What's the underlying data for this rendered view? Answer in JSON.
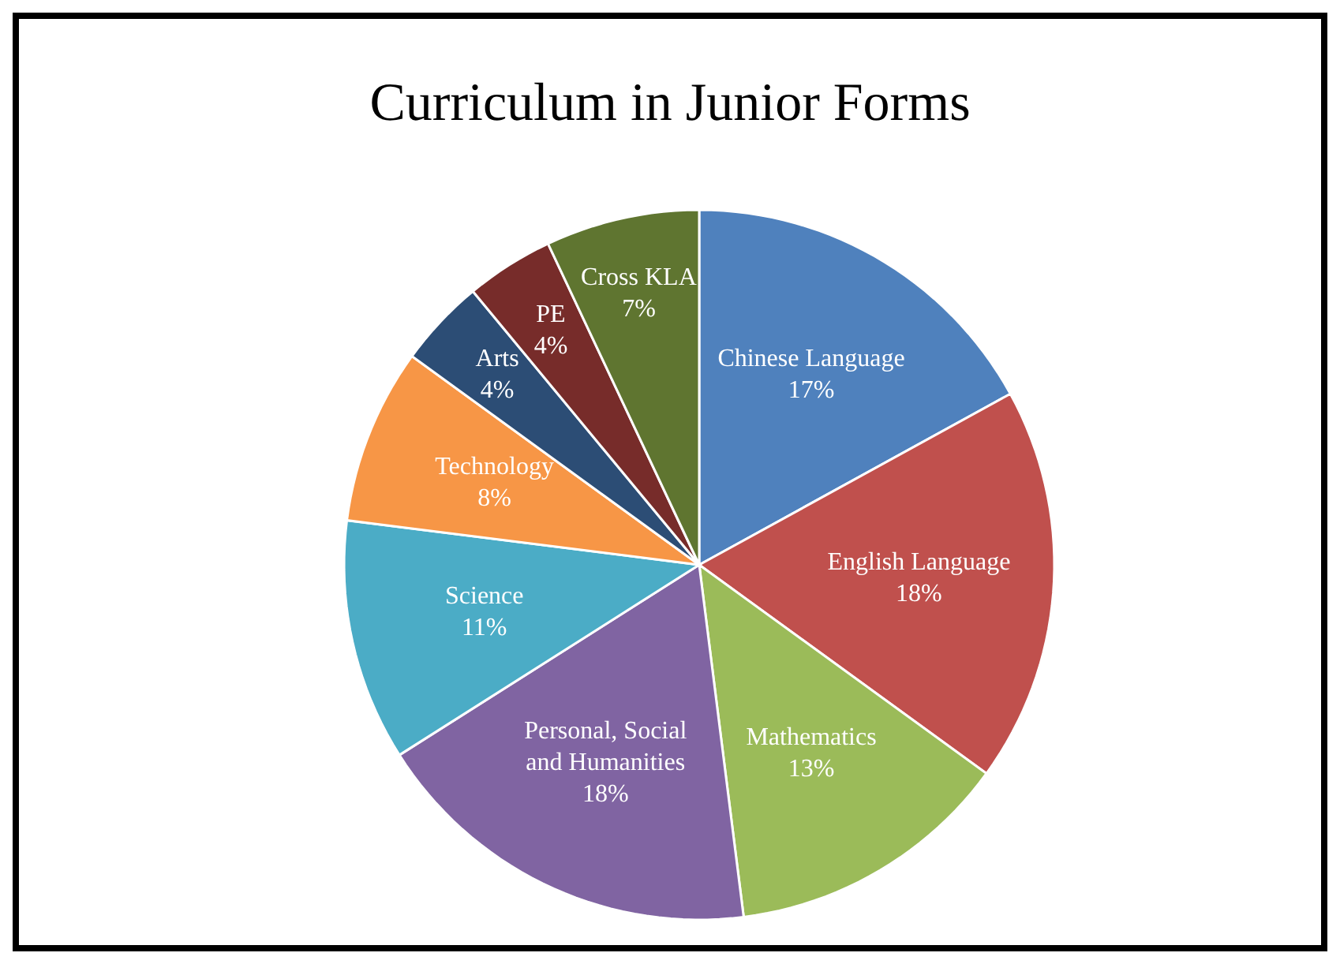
{
  "chart_data": {
    "type": "pie",
    "title": "Curriculum in Junior Forms",
    "categories": [
      "Chinese Language",
      "English Language",
      "Mathematics",
      "Personal, Social and Humanities",
      "Science",
      "Technology",
      "Arts",
      "PE",
      "Cross KLA"
    ],
    "values": [
      17,
      18,
      13,
      18,
      11,
      8,
      4,
      4,
      7
    ],
    "value_labels": [
      "17%",
      "18%",
      "13%",
      "18%",
      "11%",
      "8%",
      "4%",
      "4%",
      "7%"
    ],
    "colors": [
      "#4f81bd",
      "#c0504d",
      "#9bbb59",
      "#8064a2",
      "#4bacc6",
      "#f79646",
      "#2c4d75",
      "#772c2a",
      "#5f7530"
    ]
  }
}
